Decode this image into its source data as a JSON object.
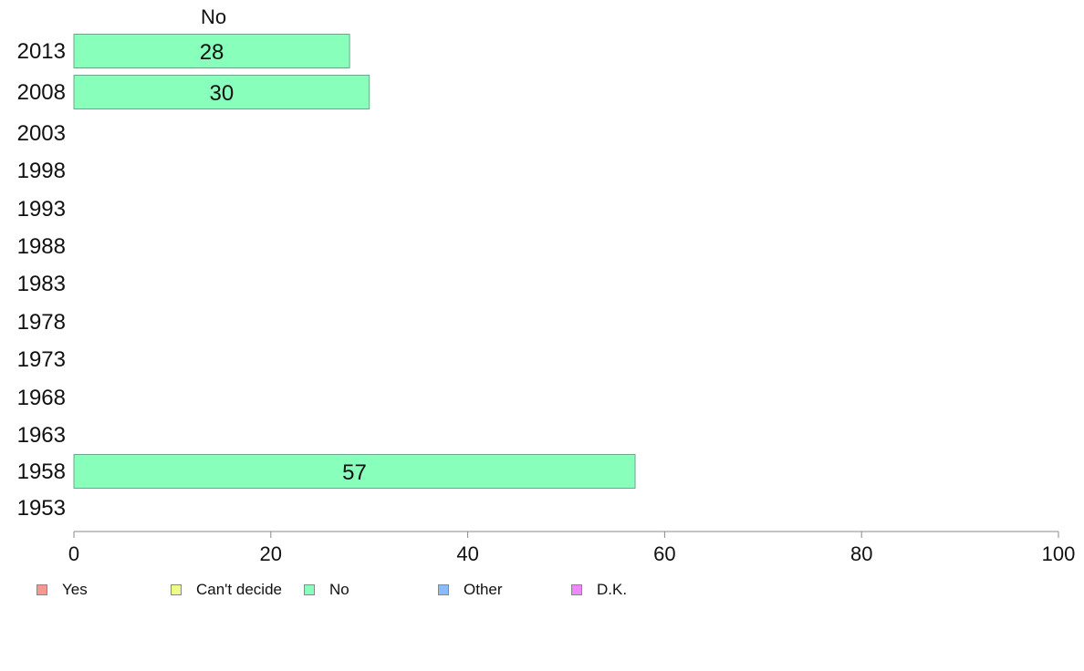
{
  "chart_data": {
    "type": "bar",
    "orientation": "horizontal",
    "series_header": "No",
    "categories": [
      "2013",
      "2008",
      "2003",
      "1998",
      "1993",
      "1988",
      "1983",
      "1978",
      "1973",
      "1968",
      "1963",
      "1958",
      "1953"
    ],
    "series": [
      {
        "name": "No",
        "values": [
          28,
          30,
          null,
          null,
          null,
          null,
          null,
          null,
          null,
          null,
          null,
          57,
          null
        ],
        "color": "#88ffbb"
      }
    ],
    "value_labels": [
      "28",
      "30",
      "",
      "",
      "",
      "",
      "",
      "",
      "",
      "",
      "",
      "57",
      ""
    ],
    "xlim": [
      0,
      100
    ],
    "xticks": [
      "0",
      "20",
      "40",
      "60",
      "80",
      "100"
    ],
    "grid": false,
    "legend_position": "bottom-left",
    "legend": [
      {
        "label": "Yes",
        "color": "#f59890"
      },
      {
        "label": "Can't decide",
        "color": "#eeff88"
      },
      {
        "label": "No",
        "color": "#88ffbb"
      },
      {
        "label": "Other",
        "color": "#88bbff"
      },
      {
        "label": "D.K.",
        "color": "#ee88ff"
      }
    ]
  }
}
